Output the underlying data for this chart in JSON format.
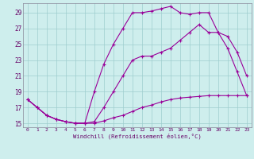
{
  "xlabel": "Windchill (Refroidissement éolien,°C)",
  "bg_color": "#ceeeed",
  "grid_color": "#9ecece",
  "line_color": "#990099",
  "xlim": [
    -0.5,
    23.5
  ],
  "ylim": [
    14.5,
    30.2
  ],
  "x_ticks": [
    0,
    1,
    2,
    3,
    4,
    5,
    6,
    7,
    8,
    9,
    10,
    11,
    12,
    13,
    14,
    15,
    16,
    17,
    18,
    19,
    20,
    21,
    22,
    23
  ],
  "y_ticks": [
    15,
    17,
    19,
    21,
    23,
    25,
    27,
    29
  ],
  "c1_x": [
    0,
    1,
    2,
    3,
    4,
    5,
    6,
    7,
    8,
    9,
    10,
    11,
    12,
    13,
    14,
    15,
    16,
    17,
    18,
    19,
    20,
    21,
    22,
    23
  ],
  "c1_y": [
    18.0,
    17.0,
    16.0,
    15.5,
    15.2,
    15.0,
    15.0,
    15.0,
    15.3,
    15.7,
    16.0,
    16.5,
    17.0,
    17.3,
    17.7,
    18.0,
    18.2,
    18.3,
    18.4,
    18.5,
    18.5,
    18.5,
    18.5,
    18.5
  ],
  "c2_x": [
    0,
    1,
    2,
    3,
    4,
    5,
    6,
    7,
    8,
    9,
    10,
    11,
    12,
    13,
    14,
    15,
    16,
    17,
    18,
    19,
    20,
    21,
    22,
    23
  ],
  "c2_y": [
    18.0,
    17.0,
    16.0,
    15.5,
    15.2,
    15.0,
    15.0,
    15.2,
    17.0,
    19.0,
    21.0,
    23.0,
    23.5,
    23.5,
    24.0,
    24.5,
    25.5,
    26.5,
    27.5,
    26.5,
    26.5,
    26.0,
    24.0,
    21.0
  ],
  "c3_x": [
    0,
    1,
    2,
    3,
    4,
    5,
    6,
    7,
    8,
    9,
    10,
    11,
    12,
    13,
    14,
    15,
    16,
    17,
    18,
    19,
    20,
    21,
    22,
    23
  ],
  "c3_y": [
    18.0,
    17.0,
    16.0,
    15.5,
    15.2,
    15.0,
    15.0,
    19.0,
    22.5,
    25.0,
    27.0,
    29.0,
    29.0,
    29.2,
    29.5,
    29.8,
    29.0,
    28.8,
    29.0,
    29.0,
    26.5,
    24.5,
    21.5,
    18.5
  ]
}
